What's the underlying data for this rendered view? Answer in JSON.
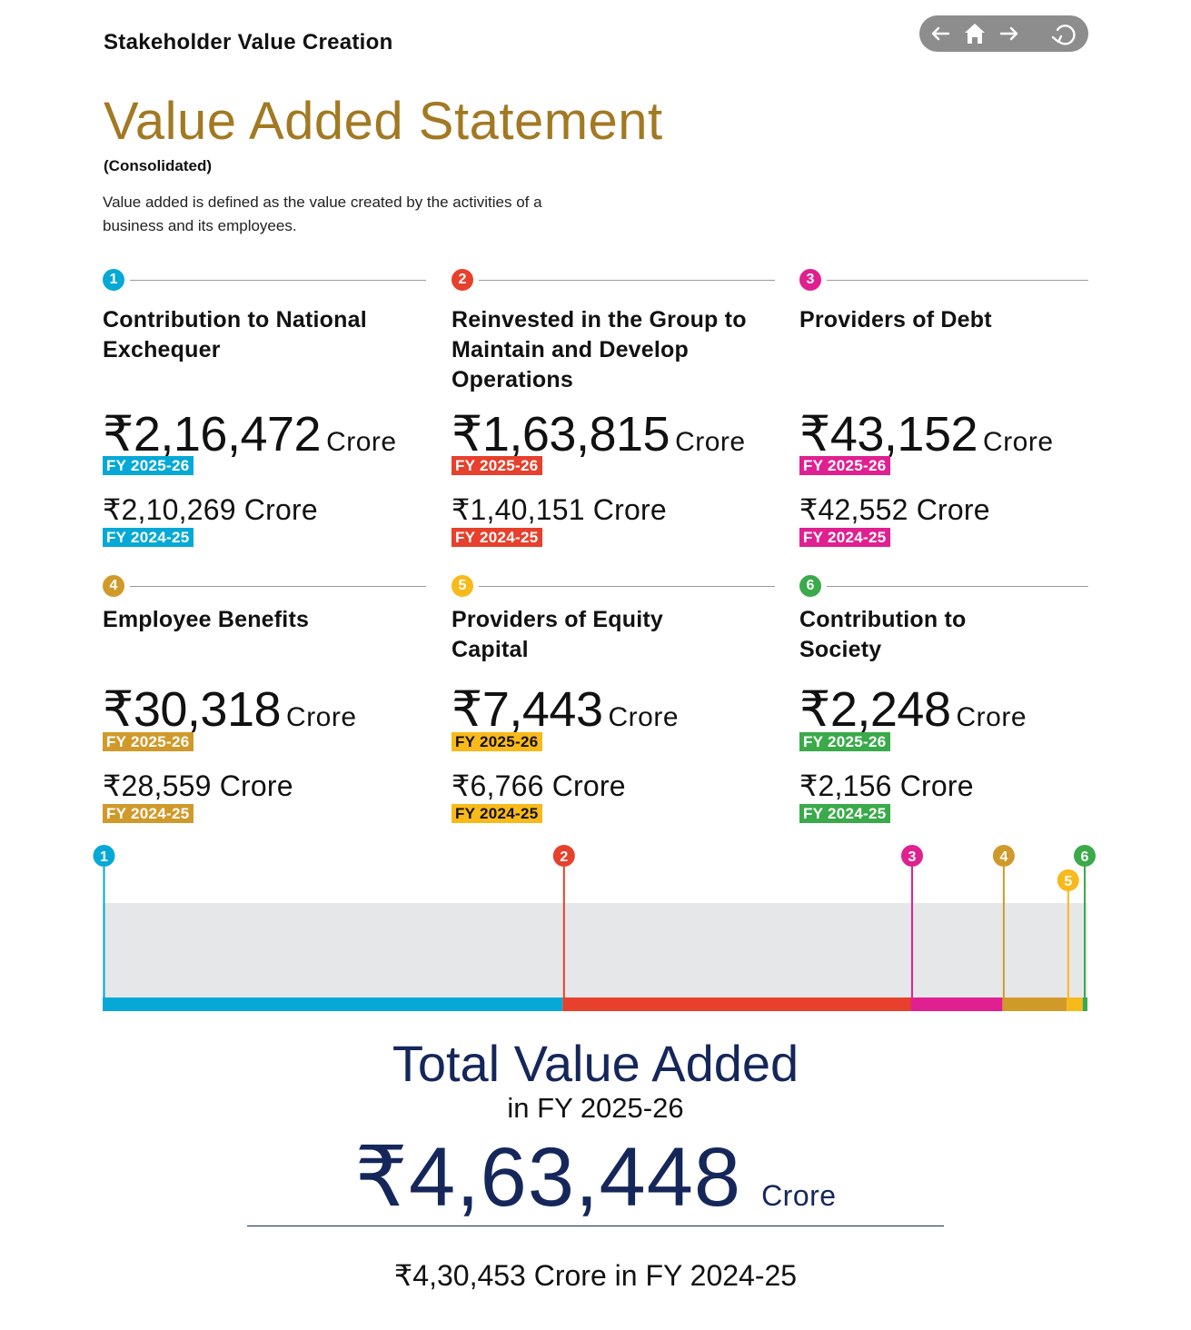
{
  "header": {
    "section_title": "Stakeholder Value Creation",
    "nav": [
      {
        "name": "back-icon",
        "glyph": "←"
      },
      {
        "name": "home-icon",
        "glyph": "home"
      },
      {
        "name": "forward-icon",
        "glyph": "→"
      },
      {
        "name": "refresh-icon",
        "glyph": "↻"
      }
    ]
  },
  "title": "Value Added Statement",
  "subtitle": "(Consolidated)",
  "description": "Value added is defined as the value created by the activities of a business and its employees.",
  "cards": [
    {
      "num": "1",
      "color": "#06a9d6",
      "heading": "Contribution to National Exchequer",
      "current_value": "₹2,16,472",
      "current_unit": "Crore",
      "current_fy": "FY 2025-26",
      "prev": "₹2,10,269 Crore",
      "prev_fy": "FY 2024-25"
    },
    {
      "num": "2",
      "color": "#e7402c",
      "heading": "Reinvested in the Group to Maintain and Develop Operations",
      "current_value": "₹1,63,815",
      "current_unit": "Crore",
      "current_fy": "FY 2025-26",
      "prev": "₹1,40,151 Crore",
      "prev_fy": "FY 2024-25"
    },
    {
      "num": "3",
      "color": "#e02090",
      "heading": "Providers of  Debt",
      "current_value": "₹43,152",
      "current_unit": "Crore",
      "current_fy": "FY 2025-26",
      "prev": "₹42,552 Crore",
      "prev_fy": "FY 2024-25"
    },
    {
      "num": "4",
      "color": "#d09a2b",
      "heading": "Employee Benefits",
      "current_value": "₹30,318",
      "current_unit": "Crore",
      "current_fy": "FY 2025-26",
      "prev": "₹28,559 Crore",
      "prev_fy": "FY 2024-25"
    },
    {
      "num": "5",
      "color": "#f8b91a",
      "heading": "Providers of Equity Capital",
      "current_value": "₹7,443",
      "current_unit": "Crore",
      "current_fy": "FY 2025-26",
      "prev": "₹6,766 Crore",
      "prev_fy": "FY 2024-25"
    },
    {
      "num": "6",
      "color": "#3aaa4a",
      "heading": "Contribution to Society",
      "current_value": "₹2,248",
      "current_unit": "Crore",
      "current_fy": "FY 2025-26",
      "prev": "₹2,156 Crore",
      "prev_fy": "FY 2024-25"
    }
  ],
  "chart_data": {
    "type": "bar",
    "categories": [
      "1",
      "2",
      "3",
      "4",
      "5",
      "6"
    ],
    "values": [
      216472,
      163815,
      43152,
      30318,
      7443,
      2248
    ],
    "colors": [
      "#06a9d6",
      "#e7402c",
      "#e02090",
      "#d09a2b",
      "#f8b91a",
      "#3aaa4a"
    ],
    "title": "",
    "xlabel": "",
    "ylabel": ""
  },
  "total": {
    "title": "Total Value Added",
    "subtitle": "in FY 2025-26",
    "value": "₹4,63,448",
    "unit": "Crore",
    "previous": "₹4,30,453 Crore in FY 2024-25"
  }
}
